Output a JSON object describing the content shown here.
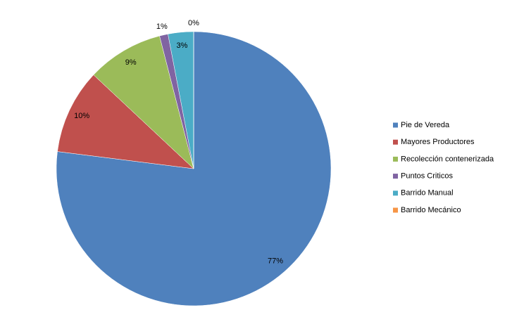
{
  "chart_data": {
    "type": "pie",
    "categories": [
      "Pie de Vereda",
      "Mayores Productores",
      "Recolección contenerizada",
      "Puntos Criticos",
      "Barrido Manual",
      "Barrido Mecánico"
    ],
    "values": [
      77,
      10,
      9,
      1,
      3,
      0
    ],
    "value_labels": [
      "77%",
      "10%",
      "9%",
      "1%",
      "3%",
      "0%"
    ],
    "colors": [
      "#4f81bd",
      "#c0504d",
      "#9bbb59",
      "#8064a2",
      "#4bacc6",
      "#f79646"
    ],
    "legend": "right"
  }
}
